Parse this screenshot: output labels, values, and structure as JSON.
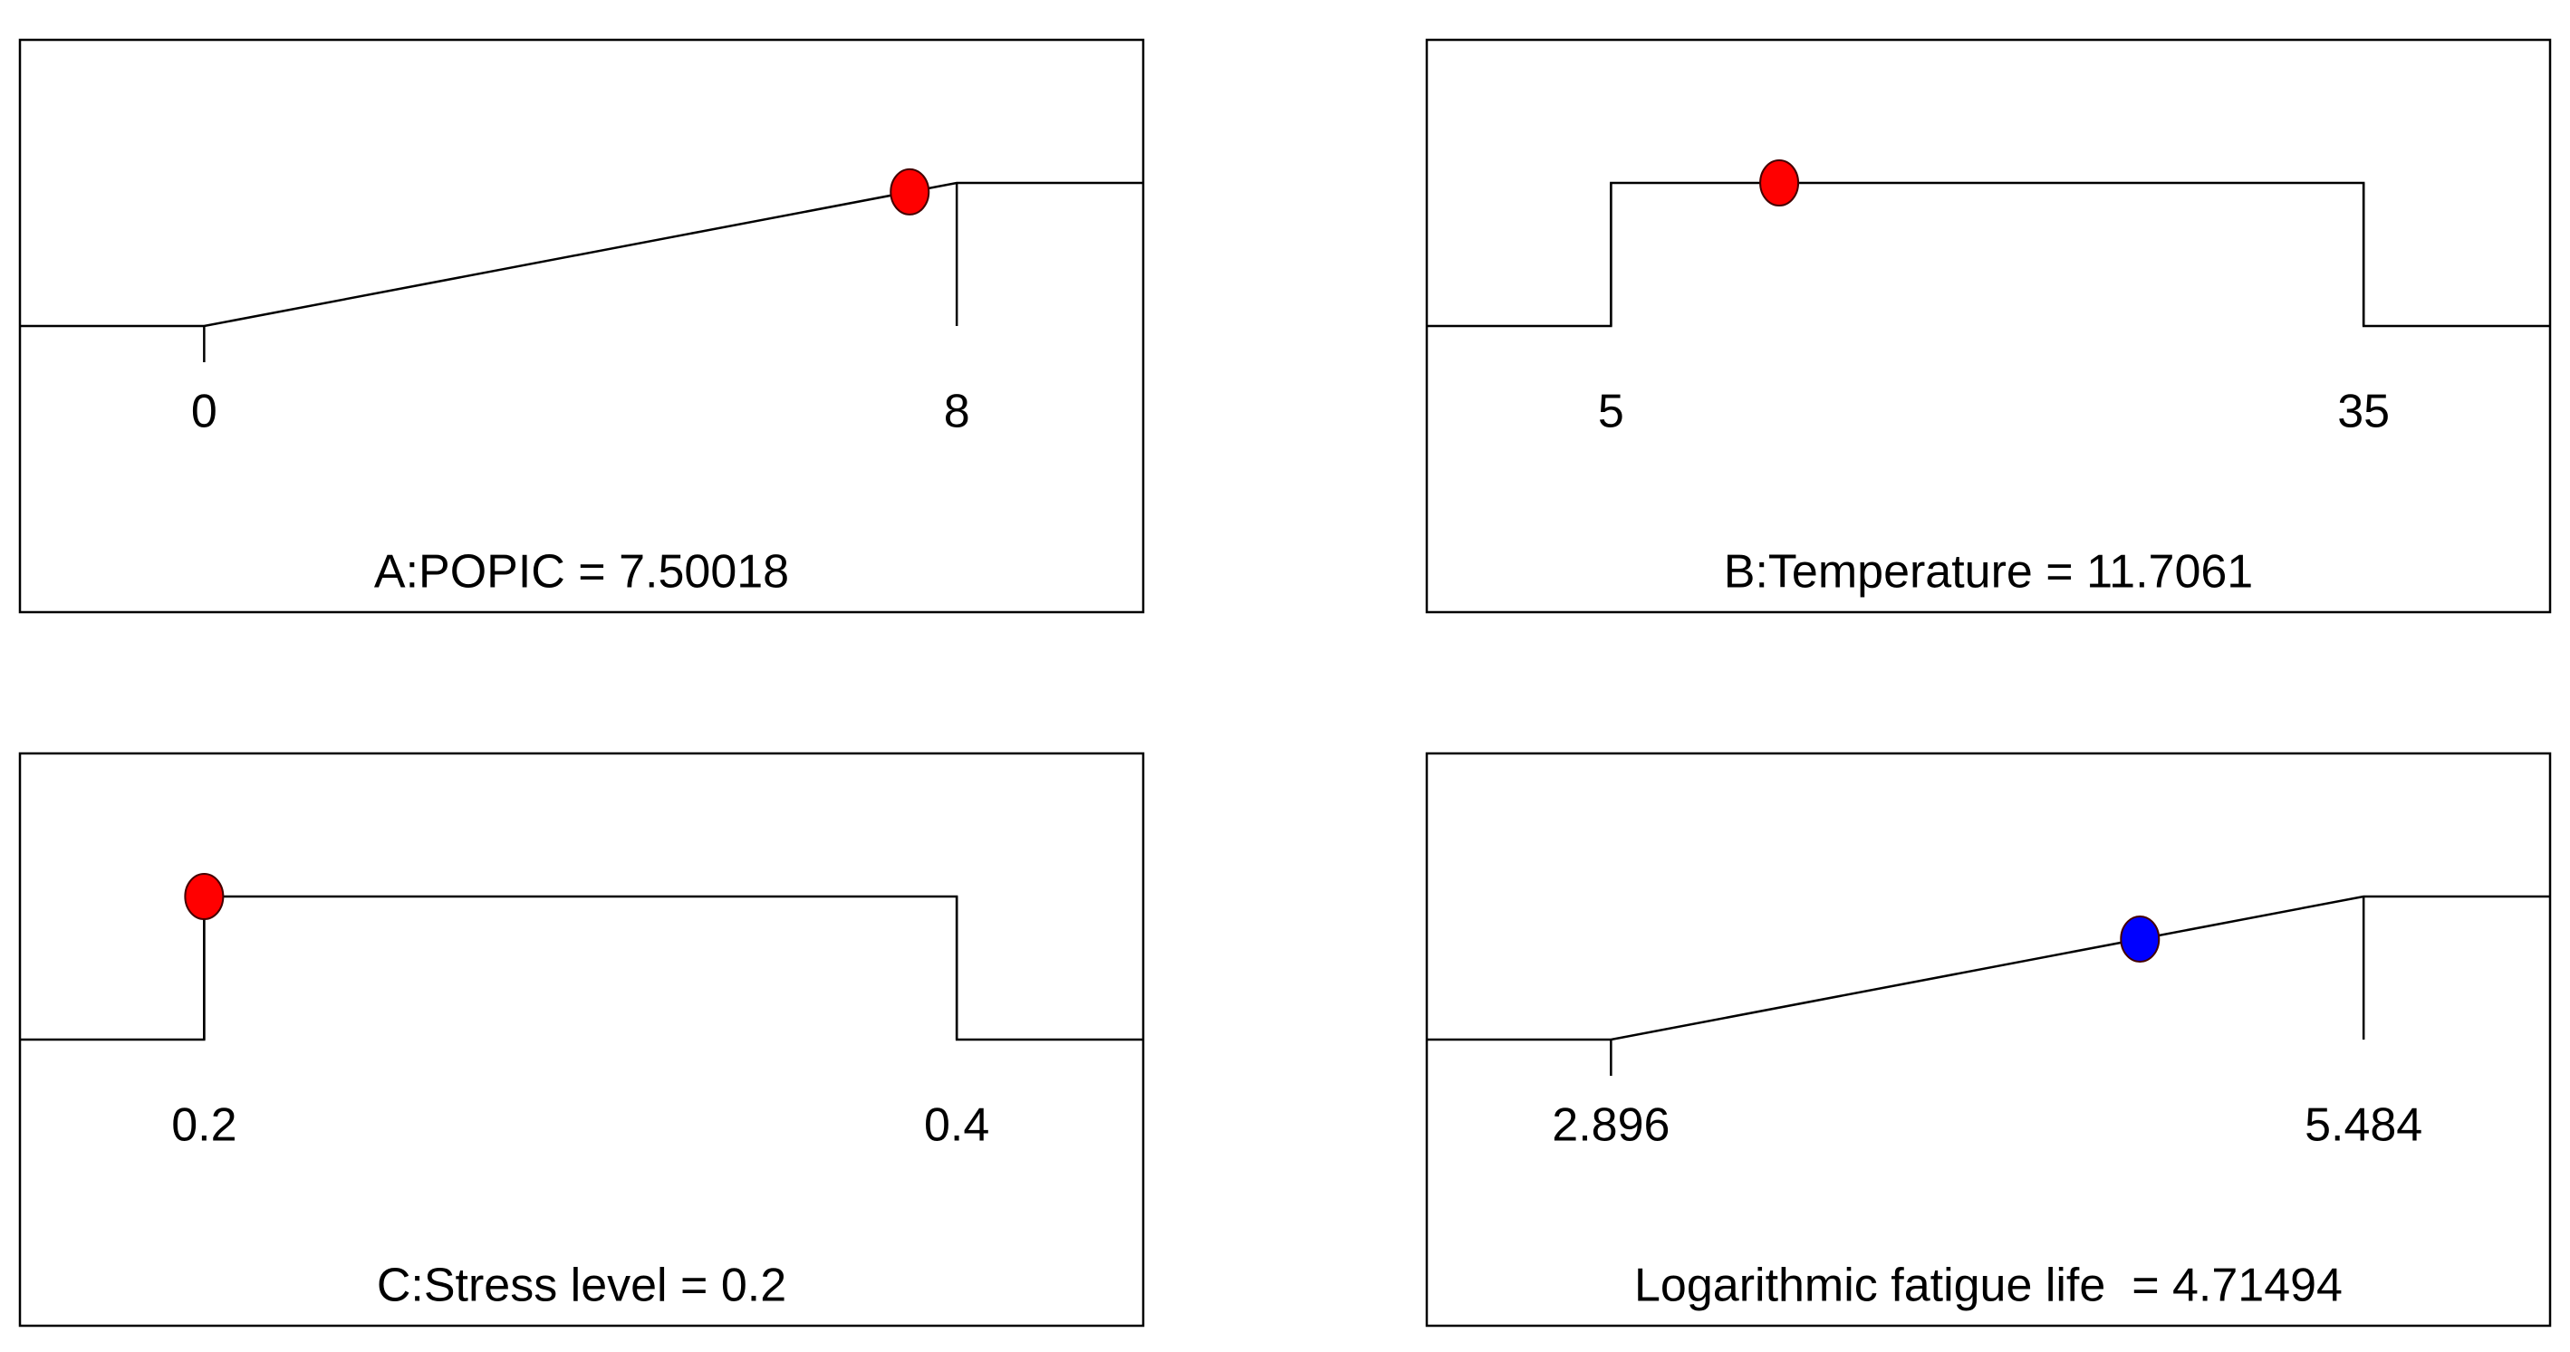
{
  "chart_data": [
    {
      "type": "ramp",
      "title": "A:POPIC = 7.50018",
      "xticks": [
        0,
        8
      ],
      "value": 7.50018,
      "color": "#ff0000"
    },
    {
      "type": "range",
      "title": "B:Temperature = 11.7061",
      "xticks": [
        5,
        35
      ],
      "value": 11.7061,
      "color": "#ff0000"
    },
    {
      "type": "range",
      "title": "C:Stress level = 0.2",
      "xticks": [
        0.2,
        0.4
      ],
      "value": 0.2,
      "color": "#ff0000"
    },
    {
      "type": "ramp",
      "title": "Logarithmic fatigue life  = 4.71494",
      "xticks": [
        2.896,
        5.484
      ],
      "value": 4.71494,
      "color": "#0000ff"
    }
  ]
}
